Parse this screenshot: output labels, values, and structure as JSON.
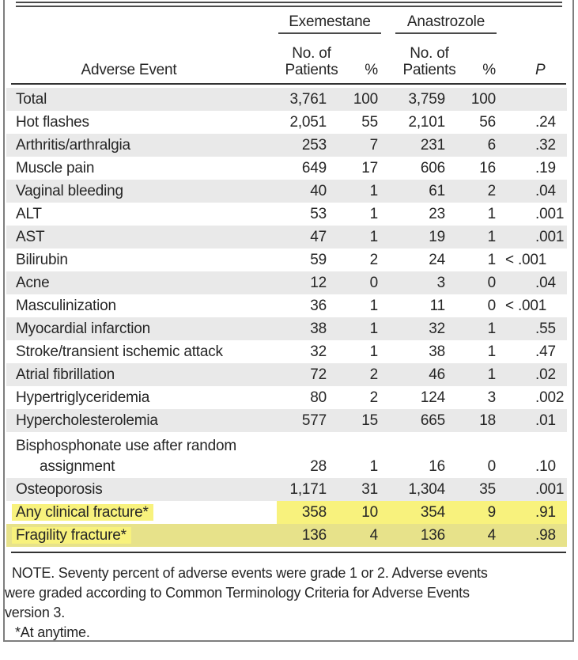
{
  "colors": {
    "highlight": "#f8f27d",
    "highlightShaded": "#e7e28a",
    "rowShade": "#e9e9e9"
  },
  "table": {
    "group_headers": {
      "exemestane": "Exemestane",
      "anastrozole": "Anastrozole"
    },
    "col_headers": {
      "adverse_event": "Adverse Event",
      "no_of": "No. of",
      "patients": "Patients",
      "percent": "%",
      "p": "P"
    },
    "rows": [
      {
        "label": "Total",
        "cells": [
          "3,761",
          "100",
          "3,759",
          "100",
          ""
        ],
        "shaded": true
      },
      {
        "label": "Hot flashes",
        "cells": [
          "2,051",
          "55",
          "2,101",
          "56",
          ".24"
        ],
        "shaded": false
      },
      {
        "label": "Arthritis/arthralgia",
        "cells": [
          "253",
          "7",
          "231",
          "6",
          ".32"
        ],
        "shaded": true
      },
      {
        "label": "Muscle pain",
        "cells": [
          "649",
          "17",
          "606",
          "16",
          ".19"
        ],
        "shaded": false
      },
      {
        "label": "Vaginal bleeding",
        "cells": [
          "40",
          "1",
          "61",
          "2",
          ".04"
        ],
        "shaded": true
      },
      {
        "label": "ALT",
        "cells": [
          "53",
          "1",
          "23",
          "1",
          ".001"
        ],
        "shaded": false
      },
      {
        "label": "AST",
        "cells": [
          "47",
          "1",
          "19",
          "1",
          ".001"
        ],
        "shaded": true
      },
      {
        "label": "Bilirubin",
        "cells": [
          "59",
          "2",
          "24",
          "1",
          "< .001"
        ],
        "shaded": false
      },
      {
        "label": "Acne",
        "cells": [
          "12",
          "0",
          "3",
          "0",
          ".04"
        ],
        "shaded": true
      },
      {
        "label": "Masculinization",
        "cells": [
          "36",
          "1",
          "11",
          "0",
          "< .001"
        ],
        "shaded": false
      },
      {
        "label": "Myocardial infarction",
        "cells": [
          "38",
          "1",
          "32",
          "1",
          ".55"
        ],
        "shaded": true
      },
      {
        "label": "Stroke/transient ischemic attack",
        "cells": [
          "32",
          "1",
          "38",
          "1",
          ".47"
        ],
        "shaded": false
      },
      {
        "label": "Atrial fibrillation",
        "cells": [
          "72",
          "2",
          "46",
          "1",
          ".02"
        ],
        "shaded": true
      },
      {
        "label": "Hypertriglyceridemia",
        "cells": [
          "80",
          "2",
          "124",
          "3",
          ".002"
        ],
        "shaded": false
      },
      {
        "label": "Hypercholesterolemia",
        "cells": [
          "577",
          "15",
          "665",
          "18",
          ".01"
        ],
        "shaded": true
      },
      {
        "label": "Bisphosphonate use after random",
        "label2": "assignment",
        "cells": [
          "28",
          "1",
          "16",
          "0",
          ".10"
        ],
        "shaded": false,
        "two_line": true
      },
      {
        "label": "Osteoporosis",
        "cells": [
          "1,171",
          "31",
          "1,304",
          "35",
          ".001"
        ],
        "shaded": true
      },
      {
        "label": "Any clinical fracture*",
        "cells": [
          "358",
          "10",
          "354",
          "9",
          ".91"
        ],
        "shaded": false,
        "highlight": "partial"
      },
      {
        "label": "Fragility fracture*",
        "cells": [
          "136",
          "4",
          "136",
          "4",
          ".98"
        ],
        "shaded": true,
        "highlight": "full"
      }
    ]
  },
  "note": {
    "lines": [
      "NOTE. Seventy percent of adverse events were grade 1 or 2. Adverse events",
      "were graded according to Common Terminology Criteria for Adverse Events",
      "version 3.",
      "*At anytime."
    ]
  }
}
